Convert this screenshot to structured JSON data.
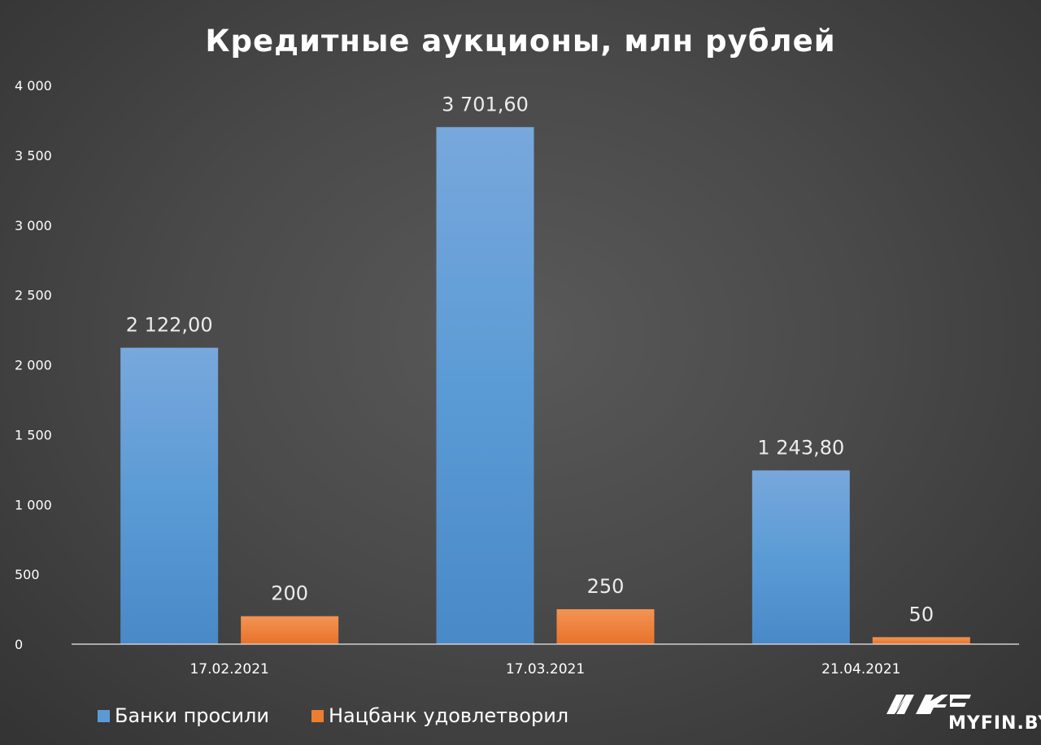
{
  "chart_data": {
    "type": "bar",
    "title": "Кредитные  аукционы,  млн рублей",
    "categories": [
      "17.02.2021",
      "17.03.2021",
      "21.04.2021"
    ],
    "series": [
      {
        "name": "Банки просили",
        "values": [
          2122.0,
          3701.6,
          1243.8
        ],
        "labels": [
          "2 122,00",
          "3 701,60",
          "1 243,80"
        ],
        "color": "#5b9bd5"
      },
      {
        "name": "Нацбанк удовлетворил",
        "values": [
          200,
          250,
          50
        ],
        "labels": [
          "200",
          "250",
          "50"
        ],
        "color": "#ed7d31"
      }
    ],
    "yticks": [
      0,
      500,
      1000,
      1500,
      2000,
      2500,
      3000,
      3500,
      4000
    ],
    "ytick_labels": [
      "0",
      "500",
      "1 000",
      "1 500",
      "2 000",
      "2 500",
      "3 000",
      "3 500",
      "4 000"
    ],
    "ylim": [
      0,
      4000
    ],
    "grid": false,
    "legend_position": "bottom-left"
  },
  "watermark": {
    "text": "MYFIN.BY"
  }
}
